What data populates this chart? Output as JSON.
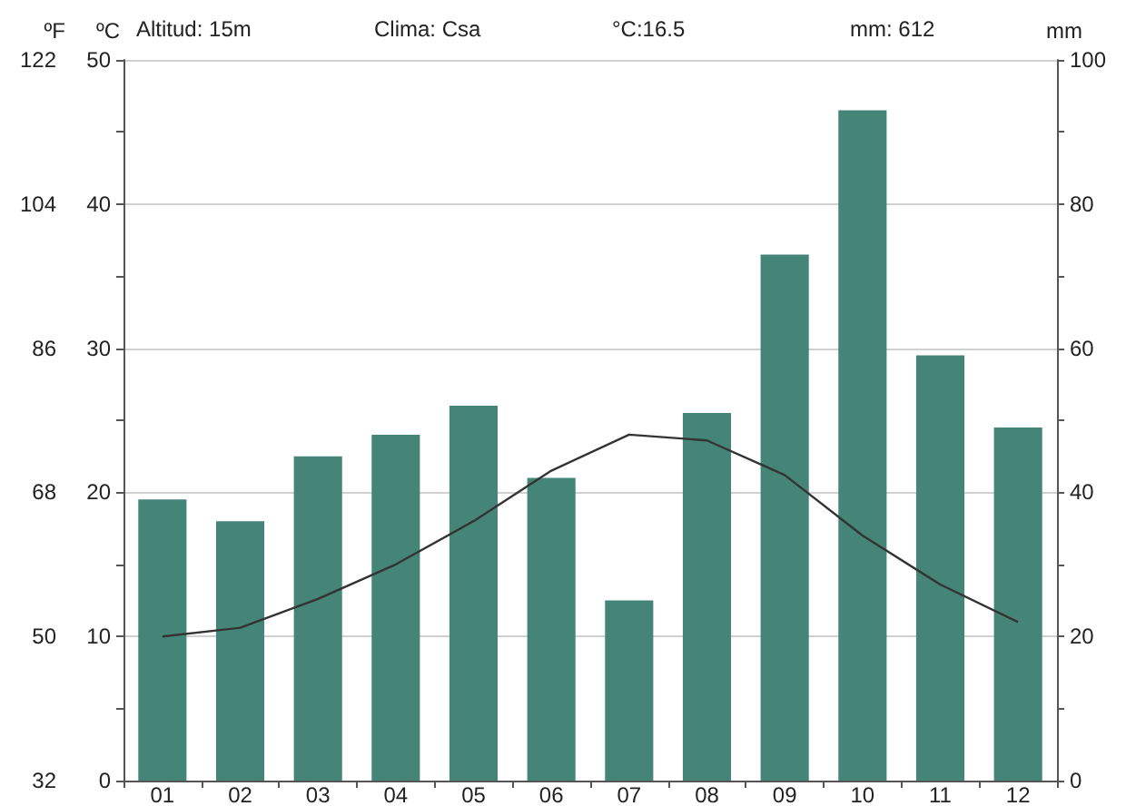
{
  "chart_data": {
    "type": "bar",
    "categories": [
      "01",
      "02",
      "03",
      "04",
      "05",
      "06",
      "07",
      "08",
      "09",
      "10",
      "11",
      "12"
    ],
    "series": [
      {
        "axis": "y2",
        "color": "#448577",
        "values": [
          39,
          36,
          45,
          48,
          52,
          42,
          25,
          51,
          73,
          93,
          59,
          49
        ]
      },
      {
        "type": "line",
        "axis": "y",
        "color": "#333333",
        "values": [
          10.0,
          10.6,
          12.6,
          15.0,
          18.0,
          21.5,
          24.0,
          23.6,
          21.2,
          17.0,
          13.6,
          11.0
        ]
      }
    ],
    "ylabel": "ºC",
    "y2label": "mm",
    "y3label": "ºF",
    "ylim": [
      0,
      50
    ],
    "yticks": [
      0,
      {
        "value": 5,
        "label": null
      },
      10,
      {
        "value": 15,
        "label": null
      },
      20,
      {
        "value": 25,
        "label": null
      },
      30,
      {
        "value": 35,
        "label": null
      },
      40,
      {
        "value": 45,
        "label": null
      },
      50
    ],
    "y2lim": [
      0,
      100
    ],
    "y2ticks": [
      0,
      {
        "value": 10,
        "label": null
      },
      20,
      {
        "value": 30,
        "label": null
      },
      40,
      {
        "value": 50,
        "label": null
      },
      60,
      {
        "value": 70,
        "label": null
      },
      80,
      {
        "value": 90,
        "label": null
      },
      100
    ],
    "y3lim": [
      32,
      122
    ],
    "y3ticks": [
      32,
      50,
      68,
      86,
      104,
      122
    ],
    "annotations": [
      "Altitud: 15m",
      "Clima: Csa",
      "°C:16.5",
      "mm: 612"
    ],
    "grid": "y",
    "marker": "none",
    "line_style": "solid"
  }
}
